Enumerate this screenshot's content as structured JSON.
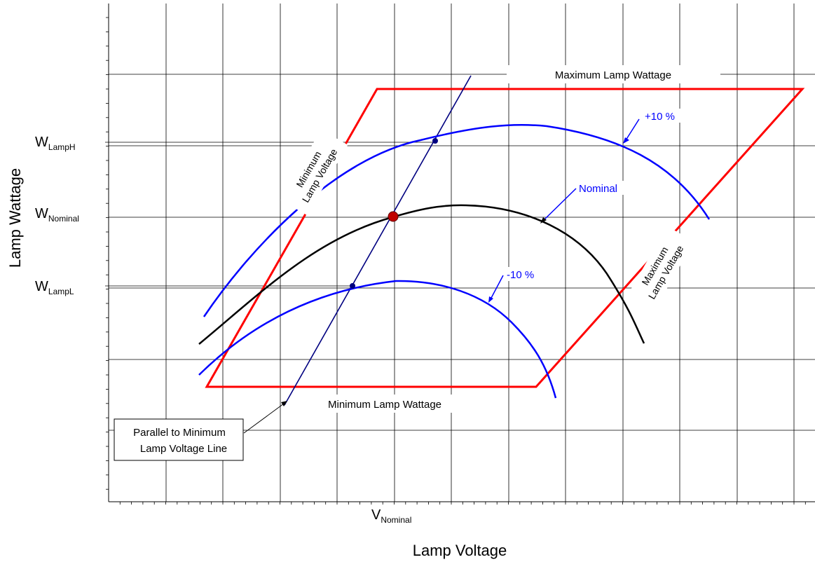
{
  "labels": {
    "y_axis": "Lamp Wattage",
    "x_axis": "Lamp Voltage",
    "v_nominal_main": "V",
    "v_nominal_sub": "Nominal",
    "w_lamph_main": "W",
    "w_lamph_sub": "LampH",
    "w_nominal_main": "W",
    "w_nominal_sub": "Nominal",
    "w_lampl_main": "W",
    "w_lampl_sub": "LampL",
    "max_wattage": "Maximum Lamp Wattage",
    "min_wattage": "Minimum Lamp Wattage",
    "min_voltage_line1": "Minimum",
    "min_voltage_line2": "Lamp Voltage",
    "max_voltage_line1": "Maximum",
    "max_voltage_line2": "Lamp Voltage",
    "plus10": "+10 %",
    "nominal": "Nominal",
    "minus10": "-10 %",
    "parallel_line1": "Parallel to Minimum",
    "parallel_line2": "Lamp Voltage Line"
  },
  "colors": {
    "envelope": "#ff0000",
    "curve": "#0000ff",
    "nominal_curve": "#000000",
    "parallel_line": "#000080",
    "nominal_point": "#c00000",
    "grid": "#000000"
  }
}
